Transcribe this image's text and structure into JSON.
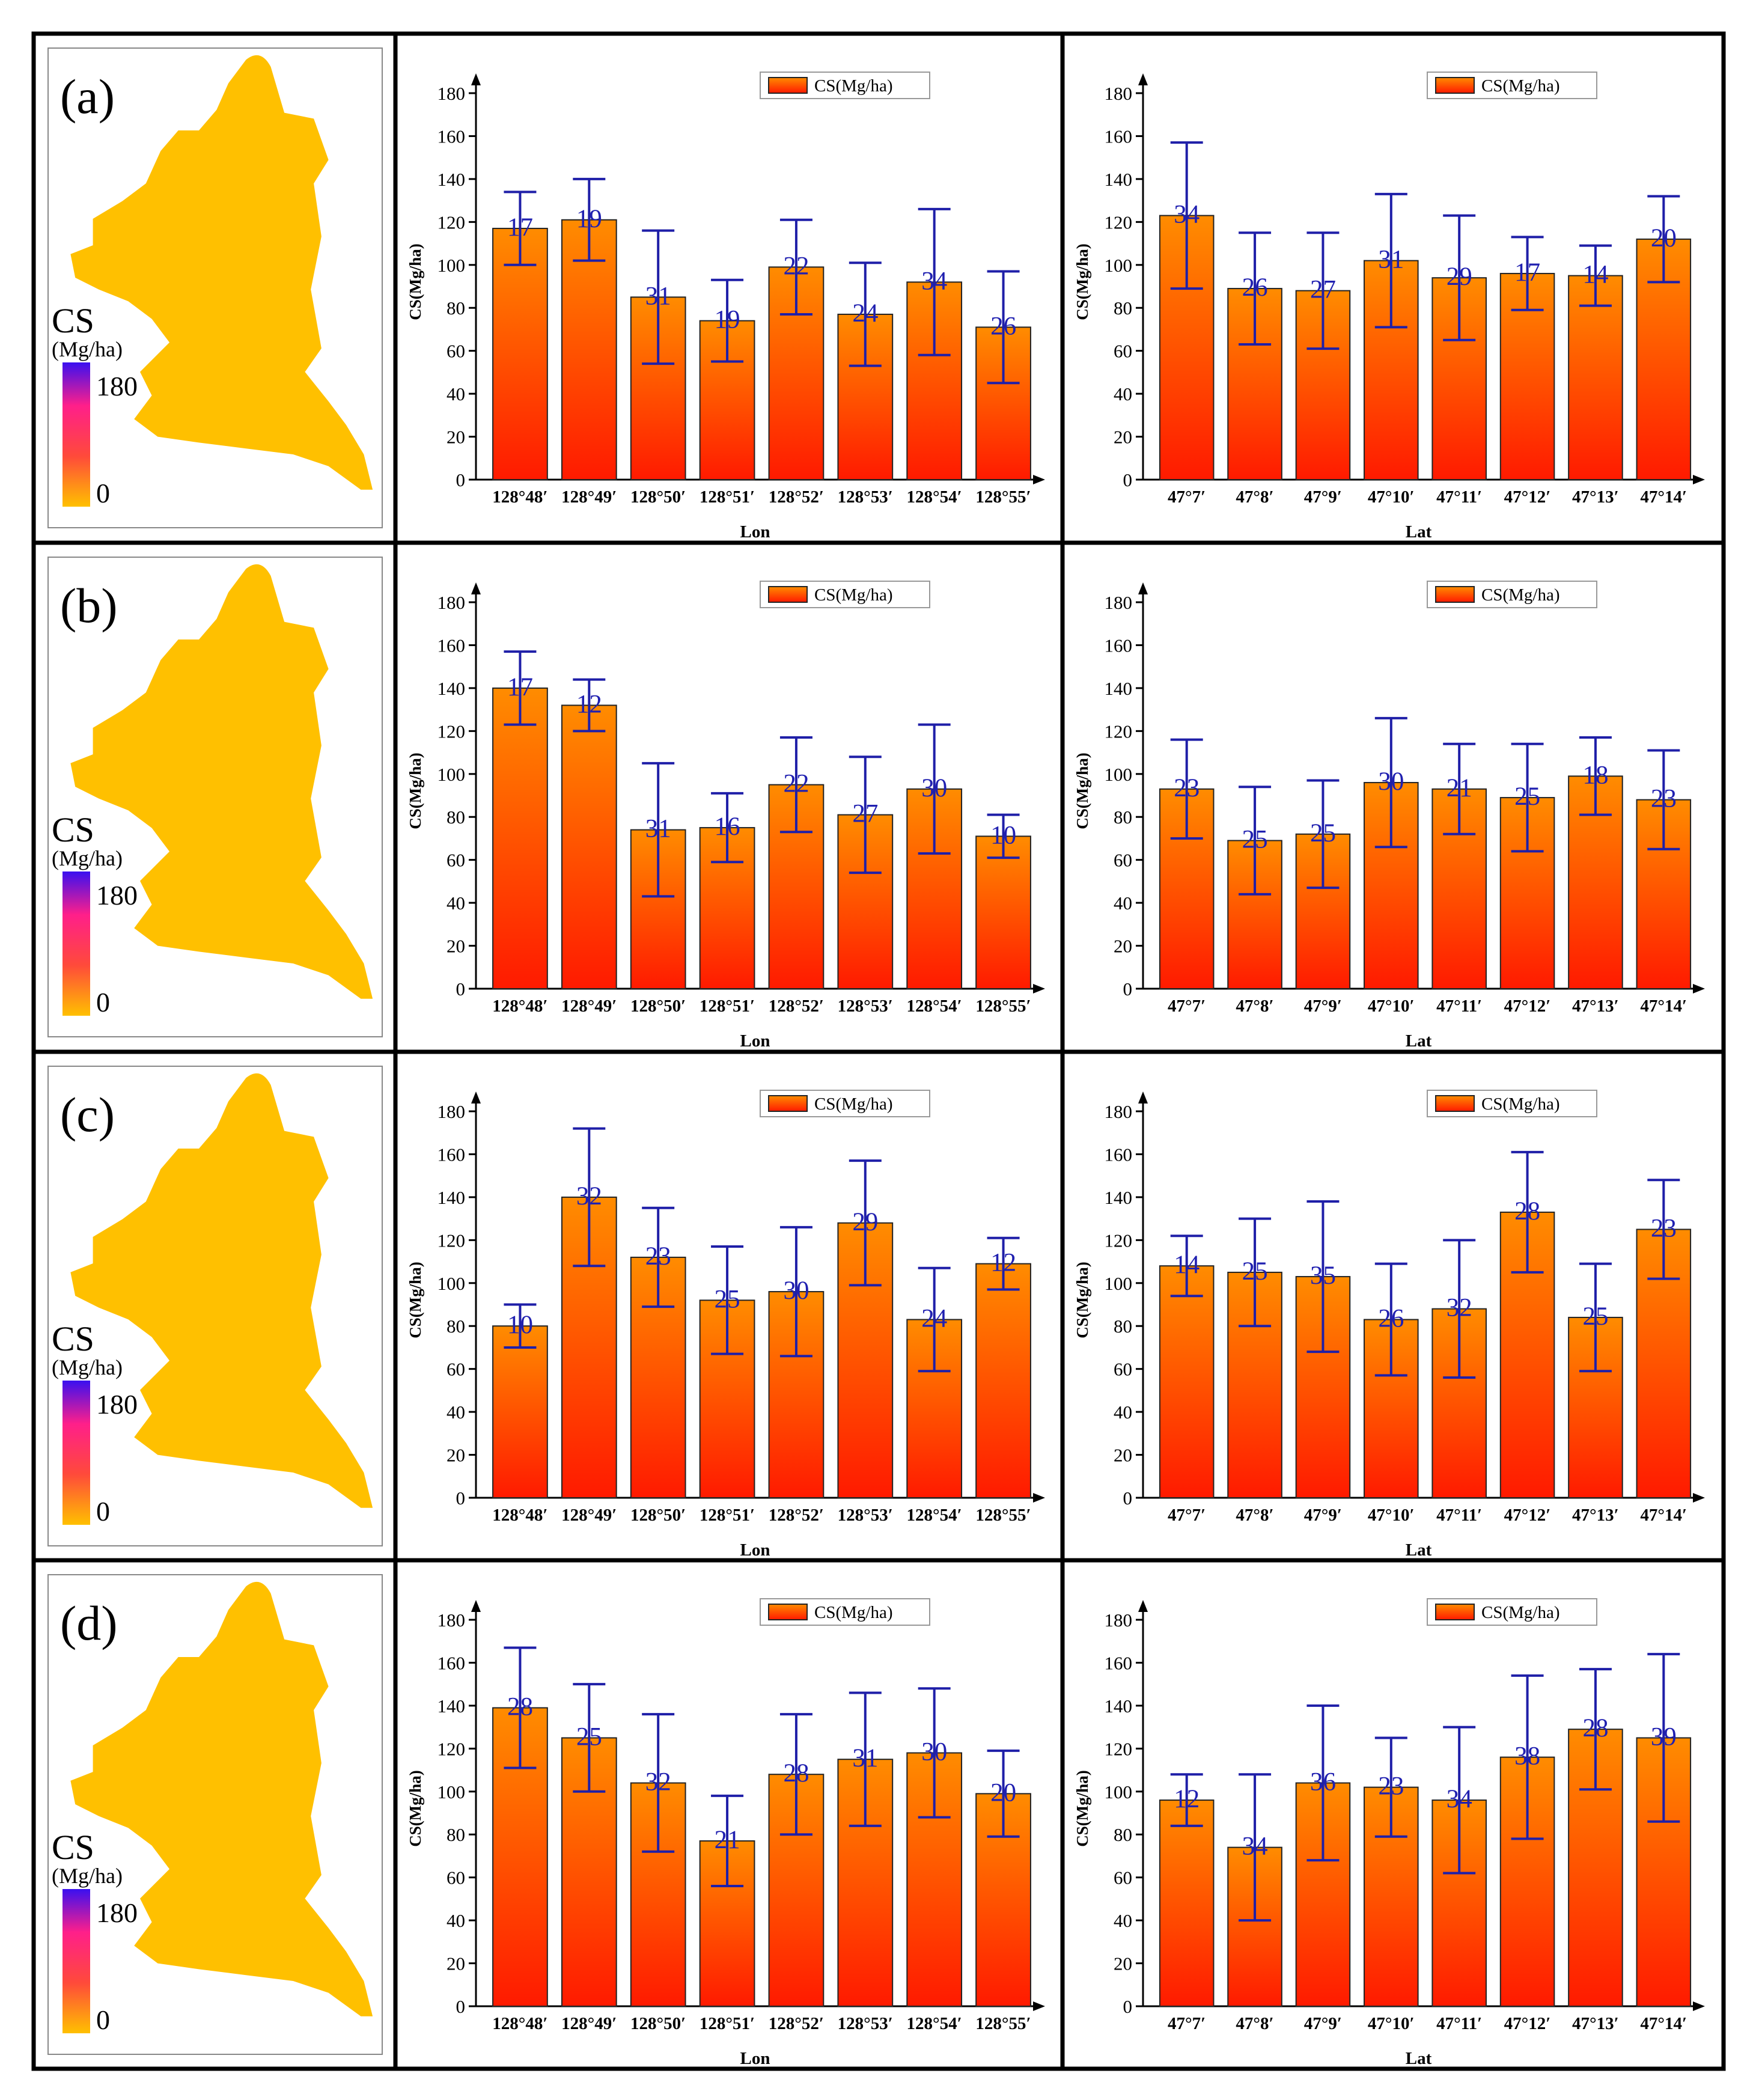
{
  "figure": {
    "colors": {
      "frame": "#000000",
      "bar_top": "#ff8c00",
      "bar_bottom": "#ff1a00",
      "bar_stroke": "#222222",
      "error_bar": "#1f1fa8",
      "count_label": "#2020b0",
      "map_fill": "#ffc000",
      "map_hot": "#ff3b6b",
      "map_peak": "#2a1ee6"
    },
    "legend_label": "CS(Mg/ha)",
    "y_axis_label": "CS(Mg/ha)",
    "map_legend": {
      "title": "CS",
      "unit": "(Mg/ha)",
      "max_label": "180",
      "min_label": "0"
    }
  },
  "chart_data": [
    {
      "panel": "(a)",
      "type": "bar",
      "axis": "Lon",
      "xlabel": "Lon",
      "ylabel": "CS(Mg/ha)",
      "ylim": [
        0,
        180
      ],
      "yticks": [
        0,
        20,
        40,
        60,
        80,
        100,
        120,
        140,
        160,
        180
      ],
      "categories": [
        "128°48′",
        "128°49′",
        "128°50′",
        "128°51′",
        "128°52′",
        "128°53′",
        "128°54′",
        "128°55′"
      ],
      "values": [
        117,
        121,
        85,
        74,
        99,
        77,
        92,
        71
      ],
      "errors": [
        17,
        19,
        31,
        19,
        22,
        24,
        34,
        26
      ],
      "counts": [
        "17",
        "19",
        "31",
        "19",
        "22",
        "24",
        "34",
        "26"
      ],
      "legend": "CS(Mg/ha)"
    },
    {
      "panel": "(a)",
      "type": "bar",
      "axis": "Lat",
      "xlabel": "Lat",
      "ylabel": "CS(Mg/ha)",
      "ylim": [
        0,
        180
      ],
      "yticks": [
        0,
        20,
        40,
        60,
        80,
        100,
        120,
        140,
        160,
        180
      ],
      "categories": [
        "47°7′",
        "47°8′",
        "47°9′",
        "47°10′",
        "47°11′",
        "47°12′",
        "47°13′",
        "47°14′"
      ],
      "values": [
        123,
        89,
        88,
        102,
        94,
        96,
        95,
        112
      ],
      "errors": [
        34,
        26,
        27,
        31,
        29,
        17,
        14,
        20
      ],
      "counts": [
        "34",
        "26",
        "27",
        "31",
        "29",
        "17",
        "14",
        "20"
      ],
      "legend": "CS(Mg/ha)"
    },
    {
      "panel": "(b)",
      "type": "bar",
      "axis": "Lon",
      "xlabel": "Lon",
      "ylabel": "CS(Mg/ha)",
      "ylim": [
        0,
        180
      ],
      "yticks": [
        0,
        20,
        40,
        60,
        80,
        100,
        120,
        140,
        160,
        180
      ],
      "categories": [
        "128°48′",
        "128°49′",
        "128°50′",
        "128°51′",
        "128°52′",
        "128°53′",
        "128°54′",
        "128°55′"
      ],
      "values": [
        140,
        132,
        74,
        75,
        95,
        81,
        93,
        71
      ],
      "errors": [
        17,
        12,
        31,
        16,
        22,
        27,
        30,
        10
      ],
      "counts": [
        "17",
        "12",
        "31",
        "16",
        "22",
        "27",
        "30",
        "10"
      ],
      "legend": "CS(Mg/ha)"
    },
    {
      "panel": "(b)",
      "type": "bar",
      "axis": "Lat",
      "xlabel": "Lat",
      "ylabel": "CS(Mg/ha)",
      "ylim": [
        0,
        180
      ],
      "yticks": [
        0,
        20,
        40,
        60,
        80,
        100,
        120,
        140,
        160,
        180
      ],
      "categories": [
        "47°7′",
        "47°8′",
        "47°9′",
        "47°10′",
        "47°11′",
        "47°12′",
        "47°13′",
        "47°14′"
      ],
      "values": [
        93,
        69,
        72,
        96,
        93,
        89,
        99,
        88
      ],
      "errors": [
        23,
        25,
        25,
        30,
        21,
        25,
        18,
        23
      ],
      "counts": [
        "23",
        "25",
        "25",
        "30",
        "21",
        "25",
        "18",
        "23"
      ],
      "legend": "CS(Mg/ha)"
    },
    {
      "panel": "(c)",
      "type": "bar",
      "axis": "Lon",
      "xlabel": "Lon",
      "ylabel": "CS(Mg/ha)",
      "ylim": [
        0,
        180
      ],
      "yticks": [
        0,
        20,
        40,
        60,
        80,
        100,
        120,
        140,
        160,
        180
      ],
      "categories": [
        "128°48′",
        "128°49′",
        "128°50′",
        "128°51′",
        "128°52′",
        "128°53′",
        "128°54′",
        "128°55′"
      ],
      "values": [
        80,
        140,
        112,
        92,
        96,
        128,
        83,
        109
      ],
      "errors": [
        10,
        32,
        23,
        25,
        30,
        29,
        24,
        12
      ],
      "counts": [
        "10",
        "32",
        "23",
        "25",
        "30",
        "29",
        "24",
        "12"
      ],
      "legend": "CS(Mg/ha)"
    },
    {
      "panel": "(c)",
      "type": "bar",
      "axis": "Lat",
      "xlabel": "Lat",
      "ylabel": "CS(Mg/ha)",
      "ylim": [
        0,
        180
      ],
      "yticks": [
        0,
        20,
        40,
        60,
        80,
        100,
        120,
        140,
        160,
        180
      ],
      "categories": [
        "47°7′",
        "47°8′",
        "47°9′",
        "47°10′",
        "47°11′",
        "47°12′",
        "47°13′",
        "47°14′"
      ],
      "values": [
        108,
        105,
        103,
        83,
        88,
        133,
        84,
        125
      ],
      "errors": [
        14,
        25,
        35,
        26,
        32,
        28,
        25,
        23
      ],
      "counts": [
        "14",
        "25",
        "35",
        "26",
        "32",
        "28",
        "25",
        "23"
      ],
      "legend": "CS(Mg/ha)"
    },
    {
      "panel": "(d)",
      "type": "bar",
      "axis": "Lon",
      "xlabel": "Lon",
      "ylabel": "CS(Mg/ha)",
      "ylim": [
        0,
        180
      ],
      "yticks": [
        0,
        20,
        40,
        60,
        80,
        100,
        120,
        140,
        160,
        180
      ],
      "categories": [
        "128°48′",
        "128°49′",
        "128°50′",
        "128°51′",
        "128°52′",
        "128°53′",
        "128°54′",
        "128°55′"
      ],
      "values": [
        139,
        125,
        104,
        77,
        108,
        115,
        118,
        99
      ],
      "errors": [
        28,
        25,
        32,
        21,
        28,
        31,
        30,
        20
      ],
      "counts": [
        "28",
        "25",
        "32",
        "21",
        "28",
        "31",
        "30",
        "20"
      ],
      "legend": "CS(Mg/ha)"
    },
    {
      "panel": "(d)",
      "type": "bar",
      "axis": "Lat",
      "xlabel": "Lat",
      "ylabel": "CS(Mg/ha)",
      "ylim": [
        0,
        180
      ],
      "yticks": [
        0,
        20,
        40,
        60,
        80,
        100,
        120,
        140,
        160,
        180
      ],
      "categories": [
        "47°7′",
        "47°8′",
        "47°9′",
        "47°10′",
        "47°11′",
        "47°12′",
        "47°13′",
        "47°14′"
      ],
      "values": [
        96,
        74,
        104,
        102,
        96,
        116,
        129,
        125
      ],
      "errors": [
        12,
        34,
        36,
        23,
        34,
        38,
        28,
        39
      ],
      "counts": [
        "12",
        "34",
        "36",
        "23",
        "34",
        "38",
        "28",
        "39"
      ],
      "legend": "CS(Mg/ha)"
    }
  ],
  "maps": [
    {
      "panel": "(a)",
      "pattern": "dots"
    },
    {
      "panel": "(b)",
      "pattern": "dots"
    },
    {
      "panel": "(c)",
      "pattern": "streaks"
    },
    {
      "panel": "(d)",
      "pattern": "columns"
    }
  ]
}
